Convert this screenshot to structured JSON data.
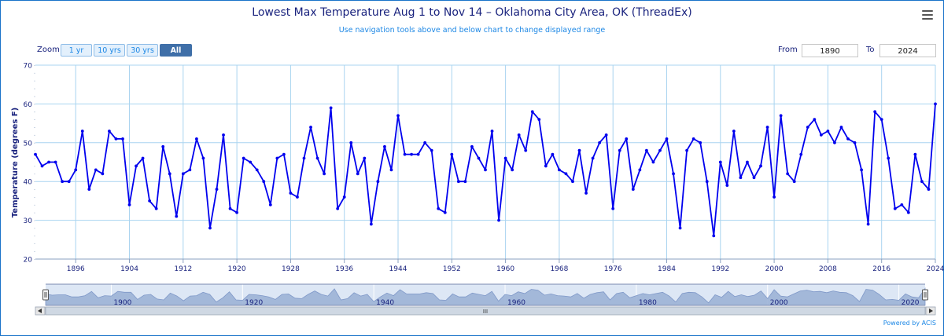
{
  "chart_data": {
    "type": "line",
    "title": "Lowest Max Temperature Aug 1 to Nov 14 – Oklahoma City Area, OK (ThreadEx)",
    "subtitle": "Use navigation tools above and below chart to change displayed range",
    "ylabel": "Temperature (degrees F)",
    "xlabel": "",
    "xlim": [
      1890,
      2024
    ],
    "ylim": [
      20,
      70
    ],
    "y_ticks": [
      20,
      30,
      40,
      50,
      60,
      70
    ],
    "x_ticks": [
      1896,
      1904,
      1912,
      1920,
      1928,
      1936,
      1944,
      1952,
      1960,
      1968,
      1976,
      1984,
      1992,
      2000,
      2008,
      2016,
      2024
    ],
    "navigator_ticks": [
      1900,
      1920,
      1940,
      1960,
      1980,
      2000,
      2020
    ],
    "grid": true,
    "legend": "none",
    "series": [
      {
        "color": "#0000ee",
        "x": [
          1890,
          1891,
          1892,
          1893,
          1894,
          1895,
          1896,
          1897,
          1898,
          1899,
          1900,
          1901,
          1902,
          1903,
          1904,
          1905,
          1906,
          1907,
          1908,
          1909,
          1910,
          1911,
          1912,
          1913,
          1914,
          1915,
          1916,
          1917,
          1918,
          1919,
          1920,
          1921,
          1922,
          1923,
          1924,
          1925,
          1926,
          1927,
          1928,
          1929,
          1930,
          1931,
          1932,
          1933,
          1934,
          1935,
          1936,
          1937,
          1938,
          1939,
          1940,
          1941,
          1942,
          1943,
          1944,
          1945,
          1946,
          1947,
          1948,
          1949,
          1950,
          1951,
          1952,
          1953,
          1954,
          1955,
          1956,
          1957,
          1958,
          1959,
          1960,
          1961,
          1962,
          1963,
          1964,
          1965,
          1966,
          1967,
          1968,
          1969,
          1970,
          1971,
          1972,
          1973,
          1974,
          1975,
          1976,
          1977,
          1978,
          1979,
          1980,
          1981,
          1982,
          1983,
          1984,
          1985,
          1986,
          1987,
          1988,
          1989,
          1990,
          1991,
          1992,
          1993,
          1994,
          1995,
          1996,
          1997,
          1998,
          1999,
          2000,
          2001,
          2002,
          2003,
          2004,
          2005,
          2006,
          2007,
          2008,
          2009,
          2010,
          2011,
          2012,
          2013,
          2014,
          2015,
          2016,
          2017,
          2018,
          2019,
          2020,
          2021,
          2022,
          2023,
          2024
        ],
        "values": [
          47,
          44,
          45,
          45,
          40,
          40,
          43,
          53,
          38,
          43,
          42,
          53,
          51,
          51,
          34,
          44,
          46,
          35,
          33,
          49,
          42,
          31,
          42,
          43,
          51,
          46,
          28,
          38,
          52,
          33,
          32,
          46,
          45,
          43,
          40,
          34,
          46,
          47,
          37,
          36,
          46,
          54,
          46,
          42,
          59,
          33,
          36,
          50,
          42,
          46,
          29,
          40,
          49,
          43,
          57,
          47,
          47,
          47,
          50,
          48,
          33,
          32,
          47,
          40,
          40,
          49,
          46,
          43,
          53,
          30,
          46,
          43,
          52,
          48,
          58,
          56,
          44,
          47,
          43,
          42,
          40,
          48,
          37,
          46,
          50,
          52,
          33,
          48,
          51,
          38,
          43,
          48,
          45,
          48,
          51,
          42,
          28,
          48,
          51,
          50,
          40,
          26,
          45,
          39,
          53,
          41,
          45,
          41,
          44,
          54,
          36,
          57,
          42,
          40,
          47,
          54,
          56,
          52,
          53,
          50,
          54,
          51,
          50,
          43,
          29,
          58,
          56,
          46,
          33,
          34,
          32,
          47,
          40,
          38,
          60
        ]
      }
    ]
  },
  "controls": {
    "zoom_label": "Zoom",
    "zoom_buttons": [
      "1 yr",
      "10 yrs",
      "30 yrs",
      "All"
    ],
    "active_zoom": "All",
    "from_label": "From",
    "from_value": "1890",
    "to_label": "To",
    "to_value": "2024",
    "scrollbar_grip": "III"
  },
  "footer": {
    "credit": "Powered by ACIS"
  },
  "icons": {
    "menu": "hamburger-menu-icon",
    "scroll_left": "arrow-left-icon",
    "scroll_right": "arrow-right-icon",
    "handle": "navigator-handle-icon"
  },
  "colors": {
    "line": "#0000ee",
    "grid": "#a9d4f0",
    "navigator_fill": "#9cb3d6",
    "title": "#1a237e",
    "accent": "#1e88e5"
  }
}
